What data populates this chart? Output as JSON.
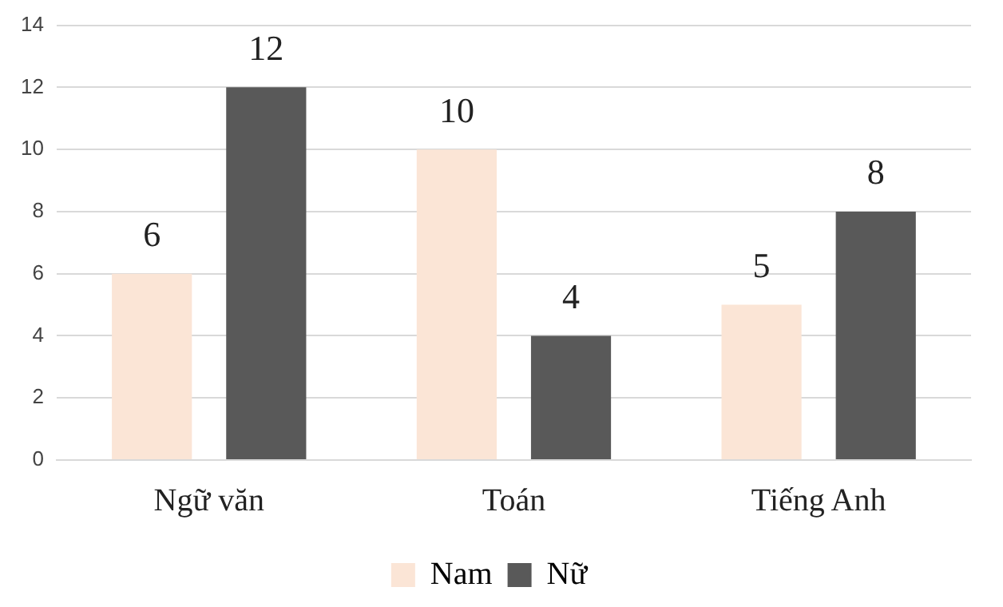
{
  "chart_data": {
    "type": "bar",
    "categories": [
      "Ngữ văn",
      "Toán",
      "Tiếng Anh"
    ],
    "series": [
      {
        "name": "Nam",
        "color": "#fbe5d6",
        "values": [
          6,
          10,
          5
        ]
      },
      {
        "name": "Nữ",
        "color": "#595959",
        "values": [
          12,
          4,
          8
        ]
      }
    ],
    "ylim": [
      0,
      14
    ],
    "yticks": [
      0,
      2,
      4,
      6,
      8,
      10,
      12,
      14
    ],
    "grid": "y",
    "legend": "bottom",
    "data_labels": true
  }
}
